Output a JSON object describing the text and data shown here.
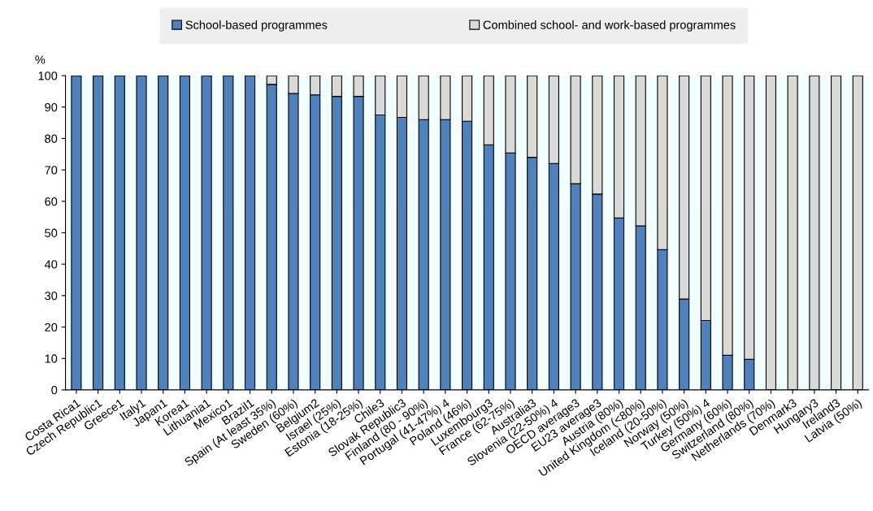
{
  "chart_data": {
    "type": "bar",
    "stacked": true,
    "ylabel": "%",
    "categories": [
      "Costa Rica1",
      "Czech Republic1",
      "Greece1",
      "Italy1",
      "Japan1",
      "Korea1",
      "Lithuania1",
      "Mexico1",
      "Brazil1",
      "Spain (At least 35%)",
      "Sweden (60%)",
      "Belgium2",
      "Israel (25%)",
      "Estonia (18-25%)",
      "Chile3",
      "Slovak Republic3",
      "Finland (80 - 90%)",
      "Portugal (41-47%) 4",
      "Poland (46%)",
      "Luxembourg3",
      "France (62-75%)",
      "Australia3",
      "Slovenia (22-50%) 4",
      "OECD average3",
      "EU23 average3",
      "Austria (80%)",
      "United Kingdom (<80%)",
      "Iceland (20-50%)",
      "Norway (50%)",
      "Turkey (50%) 4",
      "Germany (60%)",
      "Switzerland (80%)",
      "Netherlands (70%)",
      "Denmark3",
      "Hungary3",
      "Ireland3",
      "Latvia (50%)"
    ],
    "series": [
      {
        "name": "School-based programmes",
        "color": "#4f81bd",
        "values": [
          100,
          100,
          100,
          100,
          100,
          100,
          100,
          100,
          100,
          97.2,
          94.3,
          93.9,
          93.4,
          93.4,
          87.5,
          86.7,
          86,
          86,
          85.5,
          78,
          75.4,
          74,
          72,
          65.6,
          62.3,
          54.7,
          52.2,
          44.6,
          28.9,
          22.1,
          11,
          9.7,
          0,
          0,
          0,
          0,
          0
        ]
      },
      {
        "name": "Combined school- and work-based programmes",
        "color": "#d9d9d9",
        "values": [
          0,
          0,
          0,
          0,
          0,
          0,
          0,
          0,
          0,
          2.8,
          5.7,
          6.1,
          6.6,
          6.6,
          12.5,
          13.3,
          14,
          14,
          14.5,
          22,
          24.6,
          26,
          28,
          34.4,
          37.7,
          45.3,
          47.8,
          55.4,
          71.1,
          77.9,
          89,
          90.3,
          100,
          100,
          100,
          100,
          100
        ]
      }
    ],
    "ylim": [
      0,
      100
    ],
    "yticks": [
      0,
      10,
      20,
      30,
      40,
      50,
      60,
      70,
      80,
      90,
      100
    ],
    "legend": "top",
    "grid": false
  }
}
